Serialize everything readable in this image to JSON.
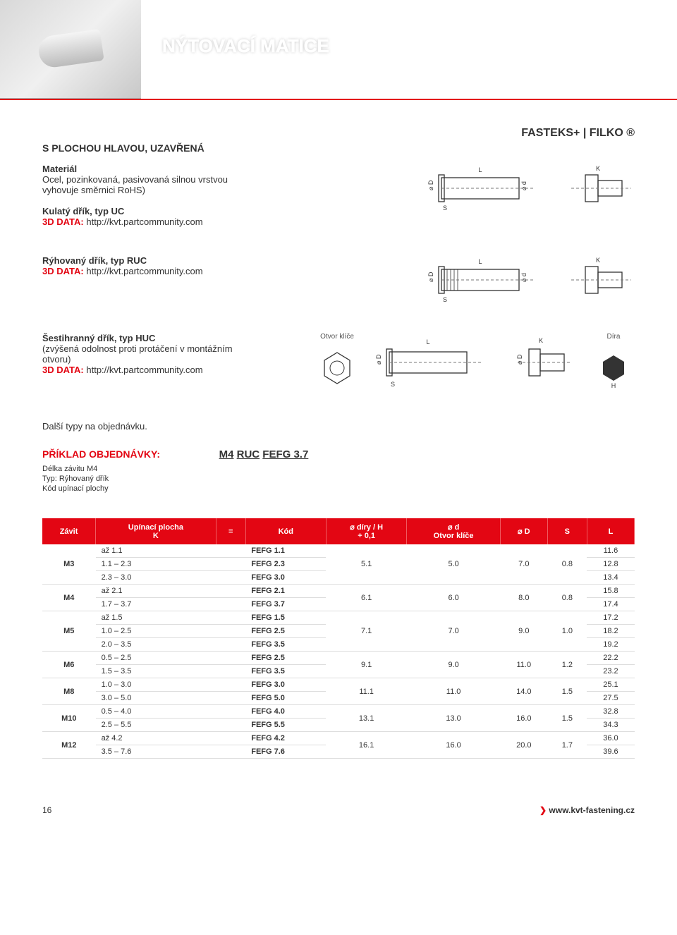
{
  "page_title": "NÝTOVACÍ MATICE",
  "brand": "FASTEKS+ | FILKO ®",
  "subtitle": "S PLOCHOU HLAVOU, UZAVŘENÁ",
  "material_label": "Materiál",
  "material_text": "Ocel, pozinkovaná, pasivovaná silnou vrstvou vyhovuje směrnici RoHS)",
  "variants": [
    {
      "title": "Kulatý dřík, typ UC",
      "data_label": "3D DATA:",
      "data_link": "http://kvt.partcommunity.com"
    },
    {
      "title": "Rýhovaný dřík, typ RUC",
      "data_label": "3D DATA:",
      "data_link": "http://kvt.partcommunity.com"
    },
    {
      "title": "Šestihranný dřík, typ HUC",
      "note": "(zvýšená odolnost proti protáčení v montážním otvoru)",
      "data_label": "3D DATA:",
      "data_link": "http://kvt.partcommunity.com",
      "diag_left_label": "Otvor klíče",
      "diag_right_label": "Díra"
    }
  ],
  "other_types": "Další typy na objednávku.",
  "order_example_label": "PŘÍKLAD OBJEDNÁVKY:",
  "order_example_code_parts": [
    "M4",
    "RUC",
    "FEFG 3.7"
  ],
  "order_example_lines": [
    "Délka závitu M4",
    "Typ: Rýhovaný dřík",
    "Kód upínací plochy"
  ],
  "diagram_symbols": {
    "L": "L",
    "K": "K",
    "S": "S",
    "D": "⌀ D",
    "d": "⌀ d",
    "H": "H"
  },
  "table": {
    "headers": [
      "Závit",
      "Upínací plocha\nK",
      "=",
      "Kód",
      "⌀ díry / H\n+ 0,1",
      "⌀ d\nOtvor klíče",
      "⌀ D",
      "S",
      "L"
    ],
    "groups": [
      {
        "thread": "M3",
        "dh": "5.1",
        "od": "5.0",
        "OD": "7.0",
        "S": "0.8",
        "rows": [
          {
            "k": "až 1.1",
            "code": "FEFG 1.1",
            "L": "11.6"
          },
          {
            "k": "1.1 – 2.3",
            "code": "FEFG 2.3",
            "L": "12.8"
          },
          {
            "k": "2.3 – 3.0",
            "code": "FEFG 3.0",
            "L": "13.4"
          }
        ]
      },
      {
        "thread": "M4",
        "dh": "6.1",
        "od": "6.0",
        "OD": "8.0",
        "S": "0.8",
        "rows": [
          {
            "k": "až 2.1",
            "code": "FEFG 2.1",
            "L": "15.8"
          },
          {
            "k": "1.7 – 3.7",
            "code": "FEFG 3.7",
            "L": "17.4"
          }
        ]
      },
      {
        "thread": "M5",
        "dh": "7.1",
        "od": "7.0",
        "OD": "9.0",
        "S": "1.0",
        "rows": [
          {
            "k": "až 1.5",
            "code": "FEFG 1.5",
            "L": "17.2"
          },
          {
            "k": "1.0 – 2.5",
            "code": "FEFG 2.5",
            "L": "18.2"
          },
          {
            "k": "2.0 – 3.5",
            "code": "FEFG 3.5",
            "L": "19.2"
          }
        ]
      },
      {
        "thread": "M6",
        "dh": "9.1",
        "od": "9.0",
        "OD": "11.0",
        "S": "1.2",
        "rows": [
          {
            "k": "0.5 – 2.5",
            "code": "FEFG 2.5",
            "L": "22.2"
          },
          {
            "k": "1.5 – 3.5",
            "code": "FEFG 3.5",
            "L": "23.2"
          }
        ]
      },
      {
        "thread": "M8",
        "dh": "11.1",
        "od": "11.0",
        "OD": "14.0",
        "S": "1.5",
        "rows": [
          {
            "k": "1.0 – 3.0",
            "code": "FEFG 3.0",
            "L": "25.1"
          },
          {
            "k": "3.0 – 5.0",
            "code": "FEFG 5.0",
            "L": "27.5"
          }
        ]
      },
      {
        "thread": "M10",
        "dh": "13.1",
        "od": "13.0",
        "OD": "16.0",
        "S": "1.5",
        "rows": [
          {
            "k": "0.5 – 4.0",
            "code": "FEFG 4.0",
            "L": "32.8"
          },
          {
            "k": "2.5 – 5.5",
            "code": "FEFG 5.5",
            "L": "34.3"
          }
        ]
      },
      {
        "thread": "M12",
        "dh": "16.1",
        "od": "16.0",
        "OD": "20.0",
        "S": "1.7",
        "rows": [
          {
            "k": "až 4.2",
            "code": "FEFG 4.2",
            "L": "36.0"
          },
          {
            "k": "3.5 – 7.6",
            "code": "FEFG 7.6",
            "L": "39.6"
          }
        ]
      }
    ]
  },
  "footer": {
    "page": "16",
    "url": "www.kvt-fastening.cz"
  },
  "colors": {
    "accent": "#e30613",
    "text": "#333333",
    "grid": "#dddddd"
  }
}
